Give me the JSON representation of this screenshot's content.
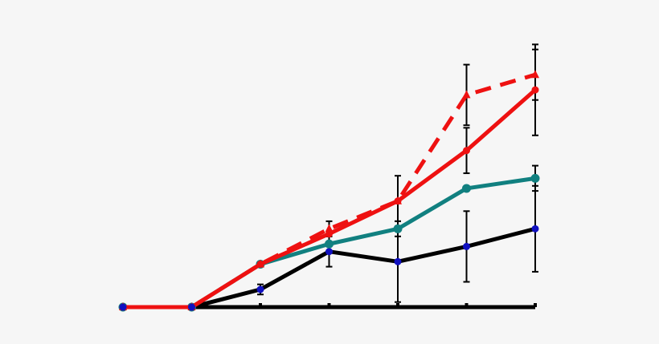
{
  "chart_data": {
    "type": "line",
    "title": "",
    "xlabel": "",
    "ylabel": "",
    "x": [
      0,
      1,
      2,
      3,
      4,
      5,
      6
    ],
    "xlim": [
      0,
      6
    ],
    "ylim": [
      0,
      100
    ],
    "grid": false,
    "legend": "none",
    "colors": {
      "red": "#ee1111",
      "teal": "#118080",
      "black": "#000000",
      "blue_marker": "#1010c0",
      "axis": "#000000",
      "background": "#f6f6f6"
    },
    "series": [
      {
        "color": "red",
        "dashed": true,
        "marker": "triangle",
        "values": [
          0,
          0,
          17,
          31,
          42,
          84,
          92
        ],
        "errors": [
          0,
          0,
          0,
          3,
          10,
          12,
          10
        ]
      },
      {
        "color": "red",
        "dashed": false,
        "marker": "circle",
        "values": [
          0,
          0,
          17,
          29,
          42,
          62,
          86
        ],
        "errors": [
          0,
          0,
          0,
          0,
          0,
          9,
          18
        ]
      },
      {
        "color": "teal",
        "dashed": false,
        "marker": "circle",
        "marker_color": "teal",
        "values": [
          0,
          0,
          17,
          25,
          31,
          47,
          51
        ],
        "errors": [
          0,
          0,
          0,
          0,
          3,
          0,
          5
        ]
      },
      {
        "color": "black",
        "dashed": false,
        "marker": "circle",
        "marker_color": "blue_marker",
        "values": [
          0,
          0,
          7,
          22,
          18,
          24,
          31
        ],
        "errors": [
          0,
          0,
          2,
          6,
          16,
          14,
          17
        ]
      }
    ]
  }
}
